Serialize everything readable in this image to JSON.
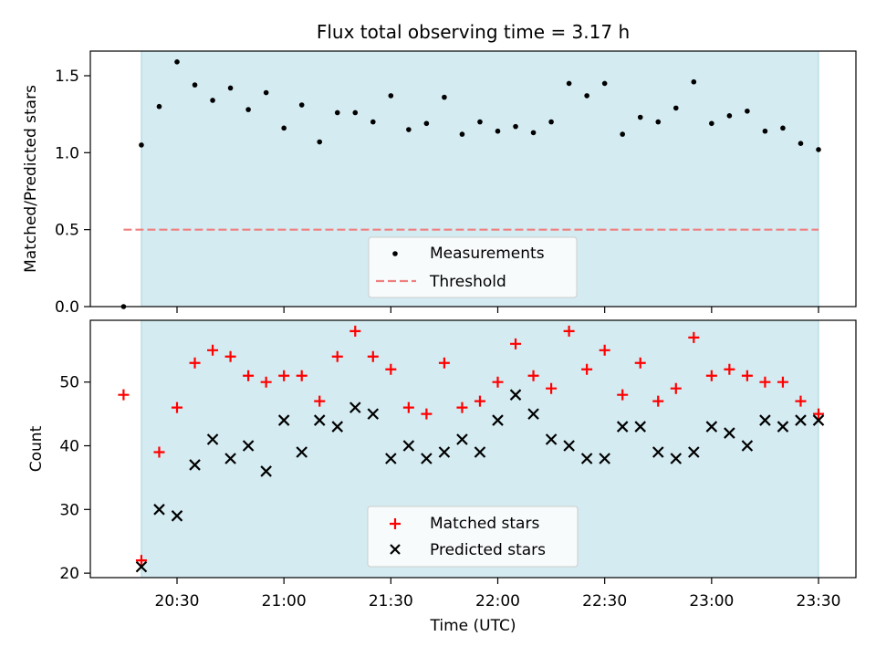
{
  "chart_data": [
    {
      "type": "scatter",
      "title": "Flux total observing time = 3.17 h",
      "ylabel": "Matched/Predicted stars",
      "xlabel": "",
      "ylim": [
        0.0,
        1.66
      ],
      "yticks": [
        "0.0",
        "0.5",
        "1.0",
        "1.5"
      ],
      "xticks": [
        "20:30",
        "21:00",
        "21:30",
        "22:00",
        "22:30",
        "23:00",
        "23:30"
      ],
      "shaded_span": [
        "20:20",
        "23:30"
      ],
      "threshold": 0.5,
      "threshold_color": "#f08080",
      "shade_color": "#d4ebf1",
      "legend_position": "lower-center",
      "series": [
        {
          "name": "Measurements",
          "x": [
            "20:15",
            "20:20",
            "20:25",
            "20:30",
            "20:35",
            "20:40",
            "20:45",
            "20:50",
            "20:55",
            "21:00",
            "21:05",
            "21:10",
            "21:15",
            "21:20",
            "21:25",
            "21:30",
            "21:35",
            "21:40",
            "21:45",
            "21:50",
            "21:55",
            "22:00",
            "22:05",
            "22:10",
            "22:15",
            "22:20",
            "22:25",
            "22:30",
            "22:35",
            "22:40",
            "22:45",
            "22:50",
            "22:55",
            "23:00",
            "23:05",
            "23:10",
            "23:15",
            "23:20",
            "23:25",
            "23:30"
          ],
          "values": [
            0.0,
            1.05,
            1.3,
            1.59,
            1.44,
            1.34,
            1.42,
            1.28,
            1.39,
            1.16,
            1.31,
            1.07,
            1.26,
            1.26,
            1.2,
            1.37,
            1.15,
            1.19,
            1.36,
            1.12,
            1.2,
            1.14,
            1.17,
            1.13,
            1.2,
            1.45,
            1.37,
            1.45,
            1.12,
            1.23,
            1.2,
            1.29,
            1.46,
            1.19,
            1.24,
            1.27,
            1.14,
            1.16,
            1.06,
            1.02
          ],
          "color": "#000000"
        },
        {
          "name": "Threshold",
          "color": "#f08080"
        }
      ]
    },
    {
      "type": "scatter",
      "title": "",
      "ylabel": "Count",
      "xlabel": "Time (UTC)",
      "ylim": [
        19.3,
        59.7
      ],
      "yticks": [
        "20",
        "30",
        "40",
        "50"
      ],
      "xticks": [
        "20:30",
        "21:00",
        "21:30",
        "22:00",
        "22:30",
        "23:00",
        "23:30"
      ],
      "legend_position": "lower-center",
      "series": [
        {
          "name": "Matched stars",
          "marker": "+",
          "color": "#ff0000",
          "x": [
            "20:15",
            "20:20",
            "20:25",
            "20:30",
            "20:35",
            "20:40",
            "20:45",
            "20:50",
            "20:55",
            "21:00",
            "21:05",
            "21:10",
            "21:15",
            "21:20",
            "21:25",
            "21:30",
            "21:35",
            "21:40",
            "21:45",
            "21:50",
            "21:55",
            "22:00",
            "22:05",
            "22:10",
            "22:15",
            "22:20",
            "22:25",
            "22:30",
            "22:35",
            "22:40",
            "22:45",
            "22:50",
            "22:55",
            "23:00",
            "23:05",
            "23:10",
            "23:15",
            "23:20",
            "23:25",
            "23:30"
          ],
          "values": [
            48,
            22,
            39,
            46,
            53,
            55,
            54,
            51,
            50,
            51,
            51,
            47,
            54,
            58,
            54,
            52,
            46,
            45,
            53,
            46,
            47,
            50,
            56,
            51,
            49,
            58,
            52,
            55,
            48,
            53,
            47,
            49,
            57,
            51,
            52,
            51,
            50,
            50,
            47,
            45
          ]
        },
        {
          "name": "Predicted stars",
          "marker": "x",
          "color": "#000000",
          "x": [
            "20:20",
            "20:25",
            "20:30",
            "20:35",
            "20:40",
            "20:45",
            "20:50",
            "20:55",
            "21:00",
            "21:05",
            "21:10",
            "21:15",
            "21:20",
            "21:25",
            "21:30",
            "21:35",
            "21:40",
            "21:45",
            "21:50",
            "21:55",
            "22:00",
            "22:05",
            "22:10",
            "22:15",
            "22:20",
            "22:25",
            "22:30",
            "22:35",
            "22:40",
            "22:45",
            "22:50",
            "22:55",
            "23:00",
            "23:05",
            "23:10",
            "23:15",
            "23:20",
            "23:25",
            "23:30"
          ],
          "values": [
            21,
            30,
            29,
            37,
            41,
            38,
            40,
            36,
            44,
            39,
            44,
            43,
            46,
            45,
            38,
            40,
            38,
            39,
            41,
            39,
            44,
            48,
            45,
            41,
            40,
            38,
            38,
            43,
            43,
            39,
            38,
            39,
            43,
            42,
            40,
            44,
            43,
            44,
            44
          ]
        }
      ]
    }
  ]
}
